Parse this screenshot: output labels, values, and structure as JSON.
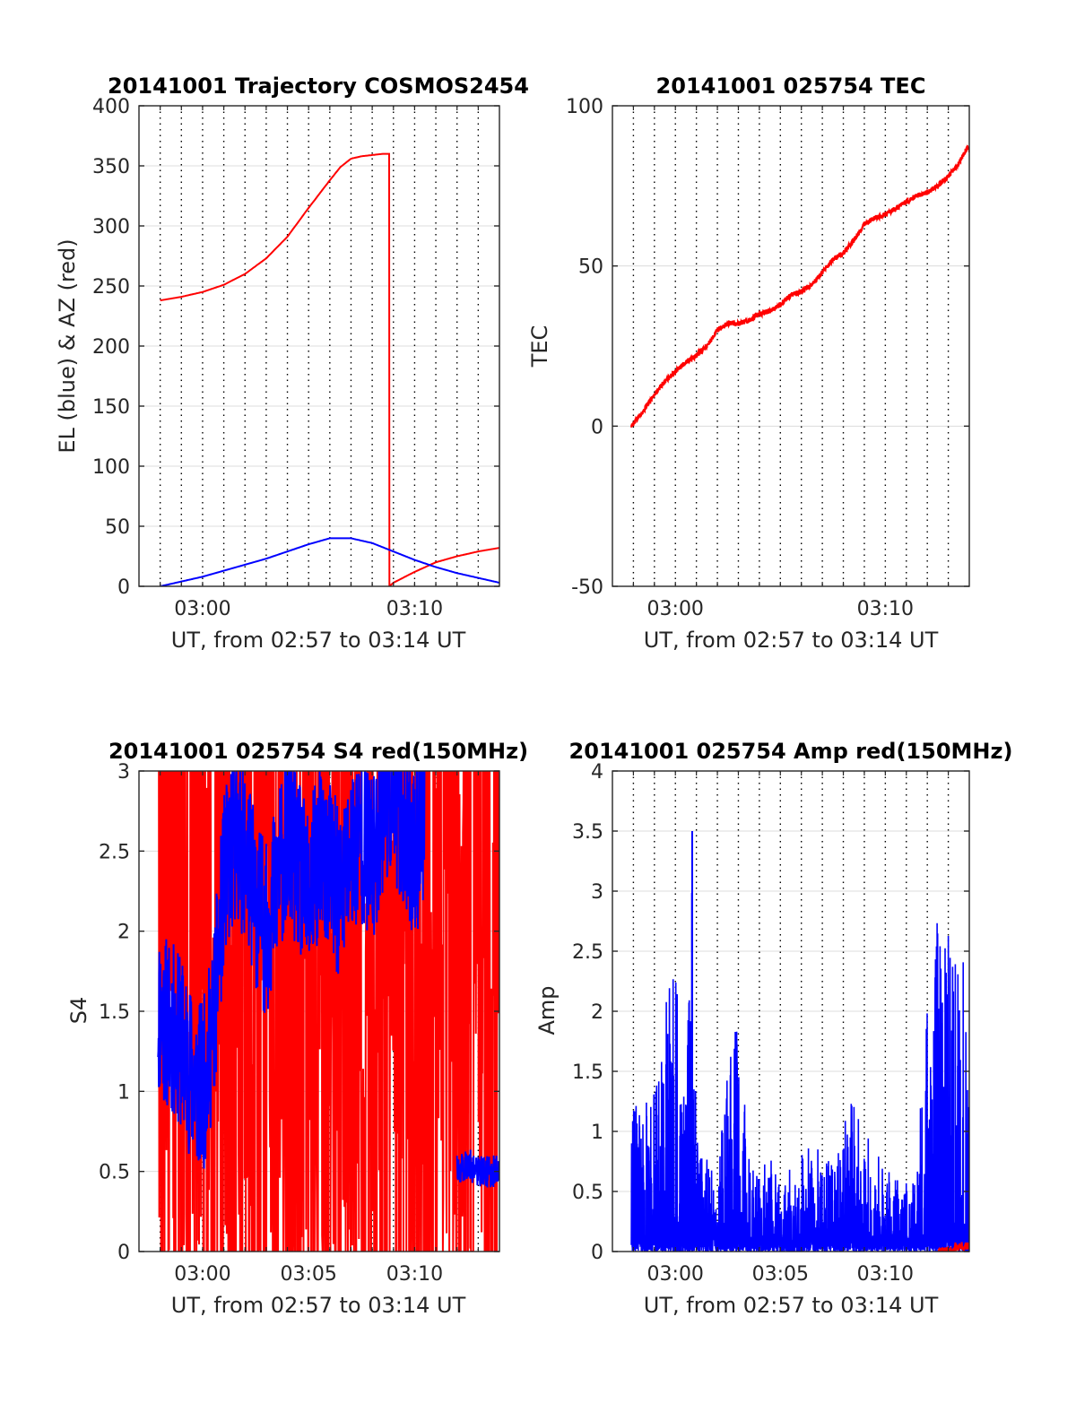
{
  "figure": {
    "x_range_label": "UT, from 02:57 to 03:14 UT",
    "colors": {
      "red": "#ff0000",
      "blue": "#0000ff",
      "axis": "#262626",
      "grid": "#dcdcdc",
      "vgrid": "#000000"
    }
  },
  "chart_data": [
    {
      "id": "trajectory",
      "type": "line",
      "title": "20141001 Trajectory COSMOS2454",
      "xlabel": "UT, from 02:57 to 03:14 UT",
      "ylabel": "EL (blue) & AZ (red)",
      "xlim_minutes_after_0257": [
        0,
        17
      ],
      "ylim": [
        0,
        400
      ],
      "yticks": [
        0,
        50,
        100,
        150,
        200,
        250,
        300,
        350,
        400
      ],
      "xticks": [
        {
          "t": 3,
          "label": "03:00"
        },
        {
          "t": 13,
          "label": "03:10"
        }
      ],
      "grid": "dotted vertical every minute, light horizontal",
      "series": [
        {
          "color": "#ff0000",
          "x": [
            1.0,
            2,
            3,
            4,
            5,
            6,
            7,
            8,
            9,
            9.5,
            10,
            10.5,
            11,
            11.5,
            11.8,
            11.81,
            12,
            13,
            14,
            15,
            16,
            17
          ],
          "values": [
            238,
            241,
            245,
            251,
            260,
            273,
            291,
            315,
            338,
            349,
            356,
            358,
            359,
            360,
            360,
            0,
            3,
            12,
            20,
            25,
            29,
            32
          ]
        },
        {
          "color": "#0000ff",
          "x": [
            1.0,
            2,
            3,
            4,
            5,
            6,
            7,
            8,
            9,
            10,
            11,
            12,
            13,
            14,
            15,
            16,
            17
          ],
          "values": [
            0,
            4,
            8,
            13,
            18,
            23,
            29,
            35,
            40,
            40,
            36,
            29,
            22,
            16,
            11,
            7,
            3
          ]
        }
      ]
    },
    {
      "id": "tec",
      "type": "line",
      "title": "20141001 025754 TEC",
      "xlabel": "UT, from 02:57 to 03:14 UT",
      "ylabel": "TEC",
      "xlim_minutes_after_0257": [
        0,
        17
      ],
      "ylim": [
        -50,
        100
      ],
      "yticks": [
        -50,
        0,
        50,
        100
      ],
      "xticks": [
        {
          "t": 3,
          "label": "03:00"
        },
        {
          "t": 13,
          "label": "03:10"
        }
      ],
      "series": [
        {
          "color": "#ff0000",
          "noise": 0.8,
          "x": [
            0.9,
            1.5,
            2,
            2.5,
            3,
            3.5,
            4,
            4.5,
            5,
            5.5,
            6,
            6.5,
            7,
            7.5,
            8,
            8.5,
            9,
            9.5,
            10,
            10.5,
            11,
            11.5,
            12,
            12.5,
            13,
            13.5,
            14,
            14.5,
            15,
            15.5,
            16,
            16.5,
            16.9,
            17
          ],
          "values": [
            0,
            5,
            10,
            14,
            17,
            20,
            22,
            25,
            30,
            32,
            32,
            33,
            35,
            36,
            38,
            41,
            42,
            44,
            48,
            52,
            54,
            58,
            63,
            65,
            66,
            68,
            70,
            72,
            73,
            75,
            78,
            82,
            87,
            86
          ]
        }
      ]
    },
    {
      "id": "s4",
      "type": "line",
      "title": "20141001 025754 S4 red(150MHz)",
      "xlabel": "UT, from 02:57 to 03:14 UT",
      "ylabel": "S4",
      "xlim_minutes_after_0257": [
        0,
        17
      ],
      "ylim": [
        0,
        3
      ],
      "yticks": [
        0,
        0.5,
        1,
        1.5,
        2,
        2.5,
        3
      ],
      "xticks": [
        {
          "t": 3,
          "label": "03:00"
        },
        {
          "t": 8,
          "label": "03:05"
        },
        {
          "t": 13,
          "label": "03:10"
        }
      ],
      "series": [
        {
          "color": "#ff0000",
          "style": "spiky",
          "x": [
            0.9,
            17
          ],
          "seed": 7,
          "base": 2.0,
          "spread": 3.2,
          "spikes": 900
        },
        {
          "color": "#0000ff",
          "style": "envelope",
          "seed": 11,
          "x": [
            0.9,
            1.5,
            2,
            2.5,
            3,
            3.5,
            4,
            4.5,
            5,
            5.5,
            6,
            6.5,
            7,
            7.5,
            8,
            8.5,
            9,
            9.5,
            10,
            10.5,
            11,
            11.5,
            12,
            12.5,
            13,
            13.5,
            14,
            14.5,
            15,
            15.5,
            16,
            16.5,
            17
          ],
          "values": [
            1.5,
            1.4,
            1.3,
            1.1,
            1.0,
            1.4,
            2.3,
            2.6,
            2.5,
            2.2,
            2.0,
            2.3,
            2.6,
            2.4,
            2.2,
            2.5,
            2.4,
            2.2,
            2.5,
            2.6,
            2.4,
            2.8,
            2.9,
            2.6,
            2.5,
            2.7,
            null,
            null,
            0.5,
            0.55,
            0.5,
            0.5,
            0.5
          ]
        }
      ]
    },
    {
      "id": "amp",
      "type": "line",
      "title": "20141001 025754 Amp red(150MHz)",
      "xlabel": "UT, from 02:57 to 03:14 UT",
      "ylabel": "Amp",
      "xlim_minutes_after_0257": [
        0,
        17
      ],
      "ylim": [
        0,
        4
      ],
      "yticks": [
        0,
        0.5,
        1,
        1.5,
        2,
        2.5,
        3,
        3.5,
        4
      ],
      "xticks": [
        {
          "t": 3,
          "label": "03:00"
        },
        {
          "t": 8,
          "label": "03:05"
        },
        {
          "t": 13,
          "label": "03:10"
        }
      ],
      "series": [
        {
          "color": "#0000ff",
          "style": "spiky-envelope",
          "seed": 23,
          "x": [
            0.9,
            1.5,
            2,
            2.5,
            3,
            3.5,
            3.8,
            4,
            4.5,
            5,
            5.5,
            6,
            6.5,
            7,
            7.5,
            8,
            8.5,
            9,
            9.5,
            10,
            10.5,
            11,
            11.5,
            12,
            12.5,
            13,
            13.5,
            14,
            14.5,
            15,
            15.5,
            16,
            16.5,
            17
          ],
          "values": [
            1.4,
            1.2,
            1.5,
            2.2,
            2.3,
            1.5,
            3.5,
            1.0,
            0.8,
            0.6,
            1.6,
            2.0,
            0.8,
            0.7,
            0.8,
            0.6,
            0.7,
            0.8,
            0.9,
            1.0,
            0.7,
            1.1,
            1.3,
            1.0,
            0.9,
            0.7,
            0.6,
            0.6,
            0.6,
            2.6,
            2.8,
            2.7,
            2.8,
            2.4
          ]
        },
        {
          "color": "#ff0000",
          "style": "baseline",
          "x": [
            15.5,
            17
          ],
          "values": [
            0.03,
            0.06
          ]
        }
      ]
    }
  ]
}
